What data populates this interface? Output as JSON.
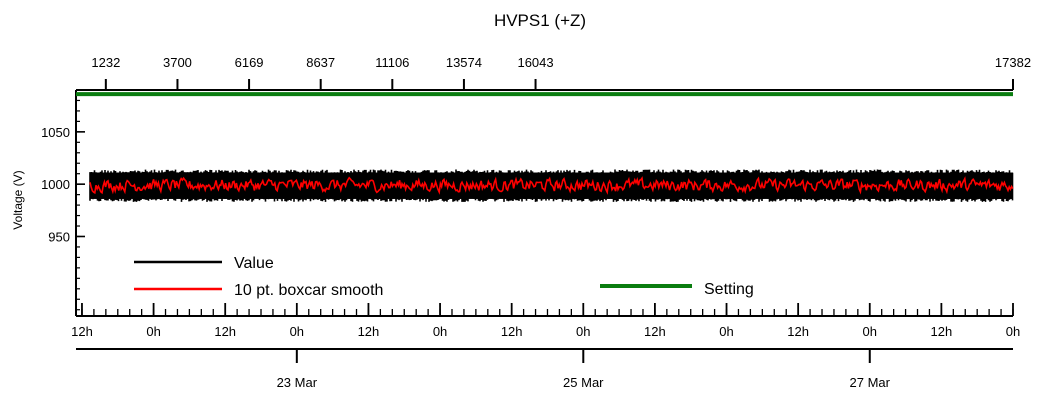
{
  "chart_data": {
    "type": "line",
    "title": "HVPS1 (+Z)",
    "xlabel": "",
    "ylabel": "Voltage (V)",
    "ylim": [
      874,
      1090
    ],
    "yticks": [
      950,
      1000,
      1050
    ],
    "x_range": [
      "2014-03-21T11:00",
      "2014-03-28T00:00"
    ],
    "x_top_ticks": [
      {
        "label": "1232",
        "t": "2014-03-21T16:00"
      },
      {
        "label": "3700",
        "t": "2014-03-22T04:00"
      },
      {
        "label": "6169",
        "t": "2014-03-22T16:00"
      },
      {
        "label": "8637",
        "t": "2014-03-23T04:00"
      },
      {
        "label": "11106",
        "t": "2014-03-23T16:00"
      },
      {
        "label": "13574",
        "t": "2014-03-24T04:00"
      },
      {
        "label": "16043",
        "t": "2014-03-24T16:00"
      },
      {
        "label": "17382",
        "t": "2014-03-28T00:00"
      }
    ],
    "x_hour_ticks": [
      {
        "label": "12h",
        "t": "2014-03-21T12:00"
      },
      {
        "label": "0h",
        "t": "2014-03-22T00:00"
      },
      {
        "label": "12h",
        "t": "2014-03-22T12:00"
      },
      {
        "label": "0h",
        "t": "2014-03-23T00:00"
      },
      {
        "label": "12h",
        "t": "2014-03-23T12:00"
      },
      {
        "label": "0h",
        "t": "2014-03-24T00:00"
      },
      {
        "label": "12h",
        "t": "2014-03-24T12:00"
      },
      {
        "label": "0h",
        "t": "2014-03-25T00:00"
      },
      {
        "label": "12h",
        "t": "2014-03-25T12:00"
      },
      {
        "label": "0h",
        "t": "2014-03-26T00:00"
      },
      {
        "label": "12h",
        "t": "2014-03-26T12:00"
      },
      {
        "label": "0h",
        "t": "2014-03-27T00:00"
      },
      {
        "label": "12h",
        "t": "2014-03-27T12:00"
      },
      {
        "label": "0h",
        "t": "2014-03-28T00:00"
      }
    ],
    "x_date_ticks": [
      {
        "label": "23 Mar",
        "t": "2014-03-23T00:00"
      },
      {
        "label": "25 Mar",
        "t": "2014-03-25T00:00"
      },
      {
        "label": "27 Mar",
        "t": "2014-03-27T00:00"
      }
    ],
    "series": [
      {
        "name": "Value",
        "color": "#000000",
        "mean": 1000,
        "min": 983,
        "max": 1014
      },
      {
        "name": "10 pt. boxcar smooth",
        "color": "#ff0000",
        "mean": 999,
        "min": 990,
        "max": 1009
      },
      {
        "name": "Setting",
        "color": "#0a7d10",
        "value": 1086
      }
    ]
  }
}
